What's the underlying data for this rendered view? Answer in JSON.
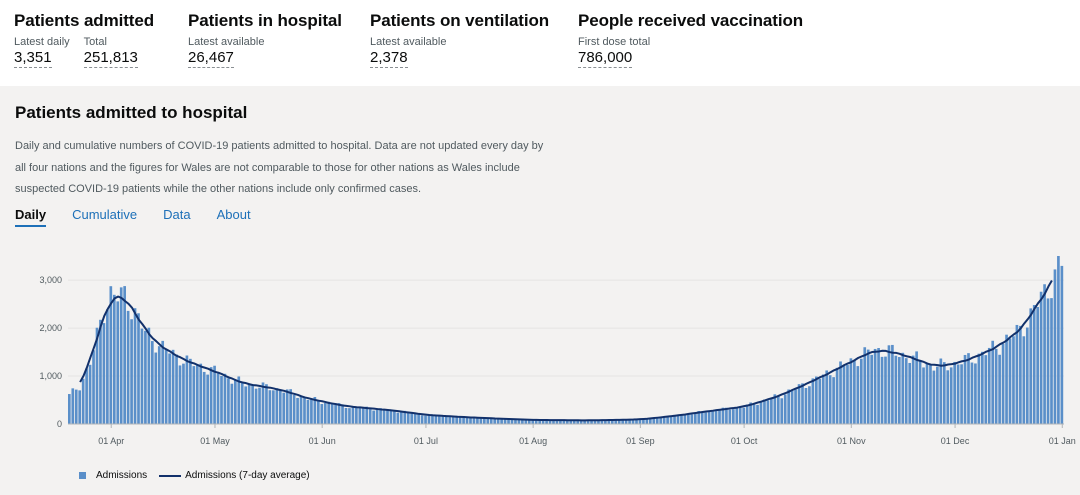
{
  "metrics": [
    {
      "title": "Patients admitted",
      "cells": [
        {
          "label": "Latest daily",
          "value": "3,351"
        },
        {
          "label": "Total",
          "value": "251,813"
        }
      ]
    },
    {
      "title": "Patients in hospital",
      "cells": [
        {
          "label": "Latest available",
          "value": "26,467"
        }
      ]
    },
    {
      "title": "Patients on ventilation",
      "cells": [
        {
          "label": "Latest available",
          "value": "2,378"
        }
      ]
    },
    {
      "title": "People received vaccination",
      "cells": [
        {
          "label": "First dose total",
          "value": "786,000"
        }
      ]
    }
  ],
  "card": {
    "title": "Patients admitted to hospital",
    "description": "Daily and cumulative numbers of COVID-19 patients admitted to hospital. Data are not updated every day by all four nations and the figures for Wales are not comparable to those for other nations as Wales include suspected COVID-19 patients while the other nations include only confirmed cases.",
    "tabs": [
      "Daily",
      "Cumulative",
      "Data",
      "About"
    ]
  },
  "chart_data": {
    "type": "bar",
    "title": "Patients admitted to hospital",
    "xlabel": "",
    "ylabel": "",
    "ylim": [
      0,
      3400
    ],
    "yticks": [
      0,
      1000,
      2000,
      3000
    ],
    "ytick_labels": [
      "0",
      "1,000",
      "2,000",
      "3,000"
    ],
    "xtick_labels": [
      "01 Apr",
      "01 May",
      "01 Jun",
      "01 Jul",
      "01 Aug",
      "01 Sep",
      "01 Oct",
      "01 Nov",
      "01 Dec",
      "01 Jan"
    ],
    "xtick_day_index": [
      12,
      42,
      73,
      103,
      134,
      165,
      195,
      226,
      256,
      287
    ],
    "start_date": "20 Mar",
    "series": [
      {
        "name": "Admissions",
        "kind": "bar",
        "color": "#5a8fc9"
      },
      {
        "name": "Admissions (7-day average)",
        "kind": "line",
        "color": "#12316b"
      }
    ],
    "anchors": [
      [
        0,
        600
      ],
      [
        3,
        780
      ],
      [
        6,
        1300
      ],
      [
        8,
        1800
      ],
      [
        10,
        2350
      ],
      [
        12,
        2750
      ],
      [
        14,
        2650
      ],
      [
        16,
        2650
      ],
      [
        19,
        2350
      ],
      [
        22,
        1900
      ],
      [
        26,
        1650
      ],
      [
        30,
        1450
      ],
      [
        36,
        1250
      ],
      [
        42,
        1100
      ],
      [
        50,
        850
      ],
      [
        56,
        780
      ],
      [
        62,
        700
      ],
      [
        68,
        550
      ],
      [
        73,
        470
      ],
      [
        80,
        370
      ],
      [
        88,
        320
      ],
      [
        95,
        270
      ],
      [
        103,
        190
      ],
      [
        115,
        140
      ],
      [
        125,
        110
      ],
      [
        134,
        85
      ],
      [
        150,
        75
      ],
      [
        165,
        95
      ],
      [
        175,
        170
      ],
      [
        185,
        270
      ],
      [
        195,
        360
      ],
      [
        205,
        580
      ],
      [
        215,
        900
      ],
      [
        222,
        1150
      ],
      [
        226,
        1300
      ],
      [
        233,
        1550
      ],
      [
        238,
        1500
      ],
      [
        243,
        1400
      ],
      [
        250,
        1200
      ],
      [
        256,
        1250
      ],
      [
        262,
        1400
      ],
      [
        268,
        1600
      ],
      [
        274,
        1900
      ],
      [
        278,
        2250
      ],
      [
        281,
        2650
      ],
      [
        284,
        2950
      ],
      [
        287,
        3350
      ]
    ]
  }
}
